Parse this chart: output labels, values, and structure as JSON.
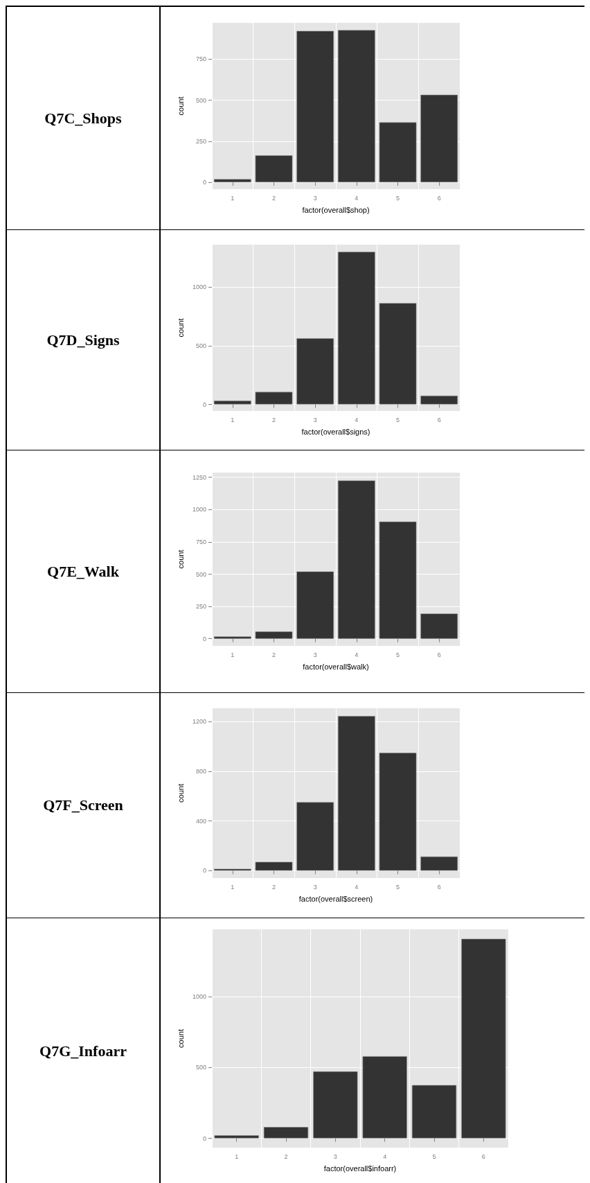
{
  "chart_data": [
    {
      "type": "bar",
      "title": "Q7C_Shops",
      "xlabel": "factor(overall$shop)",
      "ylabel": "count",
      "categories": [
        "1",
        "2",
        "3",
        "4",
        "5",
        "6"
      ],
      "values": [
        19,
        164,
        922,
        927,
        365,
        533
      ],
      "color": "#333333",
      "ylim": [
        -42,
        971
      ],
      "yticks": [
        0,
        250,
        500,
        750
      ],
      "grid": true
    },
    {
      "type": "bar",
      "title": "Q7D_Signs",
      "xlabel": "factor(overall$signs)",
      "ylabel": "count",
      "categories": [
        "1",
        "2",
        "3",
        "4",
        "5",
        "6"
      ],
      "values": [
        32,
        106,
        563,
        1300,
        863,
        74
      ],
      "color": "#333333",
      "ylim": [
        -56,
        1361
      ],
      "yticks": [
        0,
        500,
        1000
      ],
      "grid": true
    },
    {
      "type": "bar",
      "title": "Q7E_Walk",
      "xlabel": "factor(overall$walk)",
      "ylabel": "count",
      "categories": [
        "1",
        "2",
        "3",
        "4",
        "5",
        "6"
      ],
      "values": [
        18,
        56,
        521,
        1225,
        907,
        195
      ],
      "color": "#333333",
      "ylim": [
        -55,
        1286
      ],
      "yticks": [
        0,
        250,
        500,
        750,
        1000,
        1250
      ],
      "grid": true
    },
    {
      "type": "bar",
      "title": "Q7F_Screen",
      "xlabel": "factor(overall$screen)",
      "ylabel": "count",
      "categories": [
        "1",
        "2",
        "3",
        "4",
        "5",
        "6"
      ],
      "values": [
        15,
        71,
        551,
        1244,
        948,
        114
      ],
      "color": "#333333",
      "ylim": [
        -59,
        1306
      ],
      "yticks": [
        0,
        400,
        800,
        1200
      ],
      "grid": true
    },
    {
      "type": "bar",
      "title": "Q7G_Infoarr",
      "xlabel": "factor(overall$infoarr)",
      "ylabel": "count",
      "categories": [
        "1",
        "2",
        "3",
        "4",
        "5",
        "6"
      ],
      "values": [
        21,
        80,
        473,
        580,
        376,
        1410
      ],
      "color": "#333333",
      "ylim": [
        -66,
        1477
      ],
      "yticks": [
        0,
        500,
        1000
      ],
      "grid": true
    }
  ]
}
